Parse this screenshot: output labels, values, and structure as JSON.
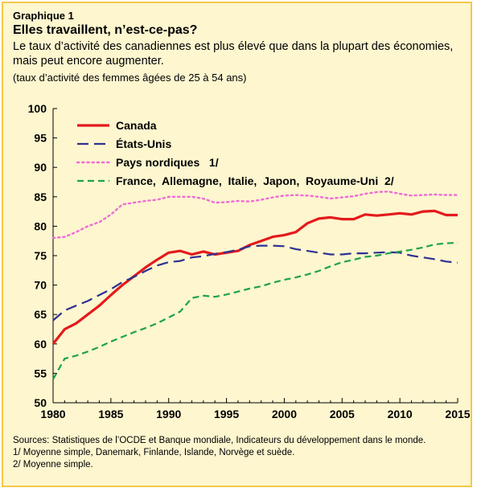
{
  "header": {
    "kicker": "Graphique  1",
    "title": "Elles travaillent, n’est-ce-pas?",
    "subtitle": "Le taux d’activité des canadiennes est plus élevé que dans la plupart des économies, mais peut encore augmenter.",
    "unit": "(taux d’activité des femmes âgées de 25 à 54 ans)"
  },
  "notes": {
    "sources": "Sources: Statistiques de l’OCDE et Banque mondiale, Indicateurs du développement dans le monde.",
    "note1": "1/ Moyenne simple, Danemark, Finlande, Islande, Norvège et suède.",
    "note2": "2/ Moyenne simple."
  },
  "colors": {
    "background": "#fdf6cf",
    "frame": "#f3c94a",
    "canada": "#e41a1c",
    "usa": "#2e3192",
    "nordic": "#f06cd6",
    "others": "#1fa24a"
  },
  "chart_data": {
    "type": "line",
    "xlim": [
      1980,
      2015
    ],
    "ylim": [
      50,
      100
    ],
    "x_ticks": [
      "1980",
      "1985",
      "1990",
      "1995",
      "2000",
      "2005",
      "2010",
      "2015"
    ],
    "y_ticks": [
      "50",
      "55",
      "60",
      "65",
      "70",
      "75",
      "80",
      "85",
      "90",
      "95",
      "100"
    ],
    "grid": false,
    "legend_position": "top-left",
    "x": [
      1980,
      1981,
      1982,
      1983,
      1984,
      1985,
      1986,
      1987,
      1988,
      1989,
      1990,
      1991,
      1992,
      1993,
      1994,
      1995,
      1996,
      1997,
      1998,
      1999,
      2000,
      2001,
      2002,
      2003,
      2004,
      2005,
      2006,
      2007,
      2008,
      2009,
      2010,
      2011,
      2012,
      2013,
      2014,
      2015
    ],
    "series": [
      {
        "name": "Canada",
        "style": "solid",
        "values": [
          60.0,
          62.5,
          63.5,
          65.0,
          66.5,
          68.3,
          70.0,
          71.5,
          73.0,
          74.3,
          75.5,
          75.8,
          75.2,
          75.7,
          75.2,
          75.5,
          75.8,
          76.8,
          77.5,
          78.2,
          78.5,
          79.0,
          80.5,
          81.3,
          81.5,
          81.2,
          81.2,
          82.0,
          81.8,
          82.0,
          82.2,
          82.0,
          82.5,
          82.6,
          81.9,
          81.9
        ]
      },
      {
        "name": "États-Unis",
        "style": "dash",
        "values": [
          64.0,
          65.7,
          66.5,
          67.3,
          68.3,
          69.3,
          70.5,
          71.4,
          72.4,
          73.3,
          73.9,
          74.1,
          74.7,
          74.9,
          75.3,
          75.6,
          76.0,
          76.6,
          76.7,
          76.7,
          76.6,
          76.1,
          75.8,
          75.5,
          75.2,
          75.2,
          75.4,
          75.4,
          75.5,
          75.6,
          75.5,
          75.0,
          74.7,
          74.4,
          74.0,
          73.8
        ]
      },
      {
        "name": "Pays nordiques   1/",
        "style": "dot",
        "values": [
          78.0,
          78.2,
          79.0,
          80.0,
          80.7,
          82.0,
          83.7,
          84.0,
          84.3,
          84.5,
          85.0,
          85.0,
          85.0,
          84.7,
          84.0,
          84.1,
          84.3,
          84.2,
          84.5,
          84.9,
          85.2,
          85.3,
          85.2,
          85.0,
          84.7,
          84.9,
          85.1,
          85.5,
          85.8,
          85.9,
          85.5,
          85.2,
          85.3,
          85.4,
          85.3,
          85.3
        ]
      },
      {
        "name": "France,  Allemagne,  Italie,  Japon,  Royaume-Uni  2/",
        "style": "dash",
        "values": [
          54.0,
          57.5,
          58.0,
          58.7,
          59.5,
          60.4,
          61.2,
          62.0,
          62.7,
          63.5,
          64.5,
          65.5,
          67.8,
          68.2,
          68.0,
          68.4,
          68.9,
          69.4,
          69.8,
          70.4,
          70.9,
          71.3,
          71.8,
          72.4,
          73.2,
          73.9,
          74.3,
          74.8,
          75.0,
          75.4,
          75.7,
          76.0,
          76.4,
          76.9,
          77.1,
          77.2
        ]
      }
    ]
  }
}
